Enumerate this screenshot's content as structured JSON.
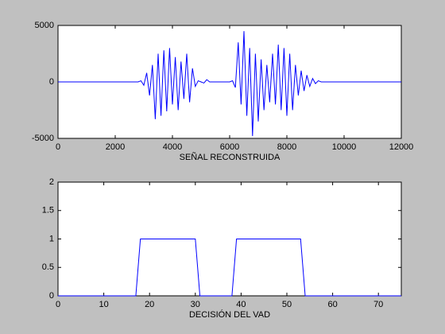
{
  "chart_data": [
    {
      "type": "line",
      "xlabel": "SEÑAL RECONSTRUIDA",
      "color": "#0000ff",
      "x": [
        0,
        2800,
        2900,
        3000,
        3100,
        3200,
        3300,
        3400,
        3500,
        3600,
        3700,
        3800,
        3900,
        4000,
        4100,
        4200,
        4300,
        4400,
        4500,
        4600,
        4700,
        4800,
        4900,
        5000,
        5100,
        5200,
        5300,
        5400,
        5500,
        5600,
        5700,
        5800,
        5900,
        6000,
        6100,
        6200,
        6300,
        6400,
        6500,
        6600,
        6700,
        6800,
        6900,
        7000,
        7100,
        7200,
        7300,
        7400,
        7500,
        7600,
        7700,
        7800,
        7900,
        8000,
        8100,
        8200,
        8300,
        8400,
        8500,
        8600,
        8700,
        8800,
        8900,
        9000,
        9100,
        9200,
        12000
      ],
      "values": [
        0,
        0,
        100,
        -300,
        800,
        -1200,
        1500,
        -3300,
        2500,
        -3000,
        2800,
        -2600,
        3000,
        -2000,
        2200,
        -2500,
        1800,
        -1500,
        2500,
        -1800,
        1200,
        -400,
        100,
        0,
        -100,
        200,
        0,
        0,
        0,
        0,
        0,
        0,
        0,
        0,
        100,
        -500,
        3500,
        -2000,
        4500,
        -3000,
        3000,
        -4800,
        2500,
        -3500,
        2000,
        -2500,
        1500,
        -1800,
        2500,
        -2000,
        3300,
        -2500,
        3000,
        -3000,
        2500,
        -2500,
        1500,
        -1200,
        1000,
        -800,
        600,
        -400,
        300,
        -150,
        100,
        0,
        0
      ],
      "xlim": [
        0,
        12000
      ],
      "xticks": [
        0,
        2000,
        4000,
        6000,
        8000,
        10000,
        12000
      ],
      "ylim": [
        -5000,
        5000
      ],
      "yticks": [
        -5000,
        0,
        5000
      ]
    },
    {
      "type": "line",
      "xlabel": "DECISIÓN DEL VAD",
      "color": "#0000ff",
      "x": [
        0,
        17,
        18,
        30,
        31,
        38,
        39,
        53,
        54,
        75
      ],
      "values": [
        0,
        0,
        1,
        1,
        0,
        0,
        1,
        1,
        0,
        0
      ],
      "xlim": [
        0,
        75
      ],
      "xticks": [
        0,
        10,
        20,
        30,
        40,
        50,
        60,
        70
      ],
      "ylim": [
        0,
        2
      ],
      "yticks": [
        0,
        0.5,
        1,
        1.5,
        2
      ]
    }
  ]
}
